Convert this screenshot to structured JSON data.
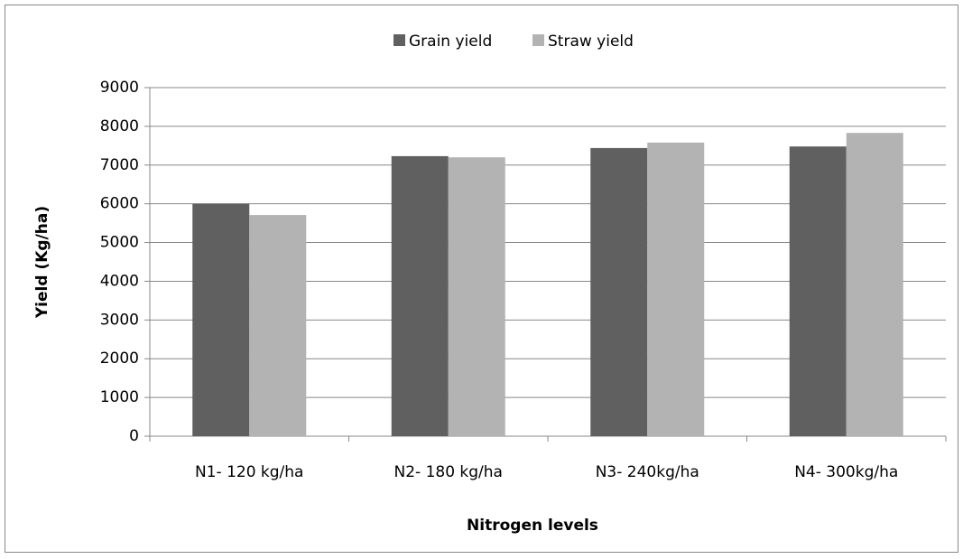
{
  "chart_data": {
    "type": "bar",
    "categories": [
      "N1- 120 kg/ha",
      "N2- 180 kg/ha",
      "N3- 240kg/ha",
      "N4- 300kg/ha"
    ],
    "series": [
      {
        "name": "Grain yield",
        "color": "#606060",
        "values": [
          6000,
          7230,
          7440,
          7480
        ]
      },
      {
        "name": "Straw yield",
        "color": "#b3b3b3",
        "values": [
          5710,
          7200,
          7580,
          7830
        ]
      }
    ],
    "xlabel": "Nitrogen levels",
    "ylabel": "Yield (Kg/ha)",
    "ylim": [
      0,
      9000
    ],
    "yticks": [
      0,
      1000,
      2000,
      3000,
      4000,
      5000,
      6000,
      7000,
      8000,
      9000
    ],
    "grid": true,
    "legend": "top"
  }
}
